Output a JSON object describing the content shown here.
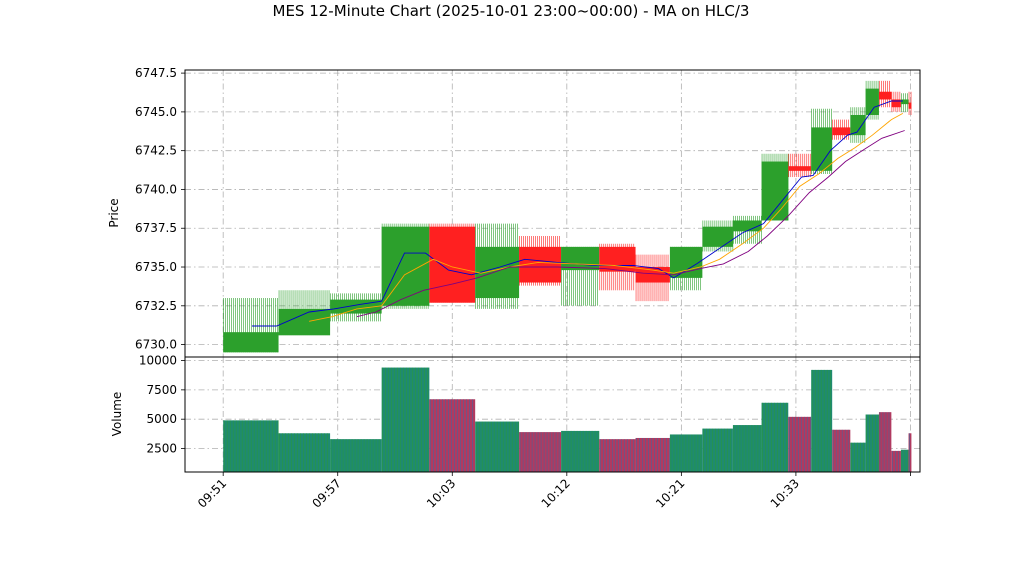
{
  "chart_data": {
    "type": "candlestick",
    "title": "MES 12-Minute Chart (2025-10-01 23:00~00:00) - MA on HLC/3",
    "xlabel": "",
    "ylabel": "Price",
    "volume_label": "Volume",
    "ylim": [
      6729.2,
      6747.7
    ],
    "volume_ylim": [
      500,
      10300
    ],
    "y_ticks": [
      6730.0,
      6732.5,
      6735.0,
      6737.5,
      6740.0,
      6742.5,
      6745.0,
      6747.5
    ],
    "y_tick_labels": [
      "6730.0",
      "6732.5",
      "6735.0",
      "6737.5",
      "6740.0",
      "6742.5",
      "6745.0",
      "6747.5"
    ],
    "volume_ticks": [
      2500,
      5000,
      7500,
      10000
    ],
    "volume_tick_labels": [
      "2500",
      "5000",
      "7500",
      "10000"
    ],
    "x_tick_labels": [
      "09:51",
      "09:57",
      "10:03",
      "10:12",
      "10:21",
      "10:33",
      ""
    ],
    "x_tick_positions": [
      0,
      6,
      12,
      18,
      24,
      30,
      36
    ],
    "x_range": [
      -2,
      36.5
    ],
    "grid": true,
    "colors": {
      "up": "#2ca02c",
      "down": "#ff2020",
      "volume_up": "#1f8a70",
      "volume_down": "#b03a60",
      "ma_fast": "#0000cc",
      "ma_mid": "#ffa500",
      "ma_slow": "#800080"
    },
    "candles": [
      {
        "x": 0,
        "w": 2.9,
        "o": 6729.5,
        "h": 6733.0,
        "l": 6729.5,
        "c": 6730.8,
        "v": 4900
      },
      {
        "x": 2.9,
        "w": 2.7,
        "o": 6730.6,
        "h": 6733.5,
        "l": 6730.6,
        "c": 6732.3,
        "v": 3800
      },
      {
        "x": 5.6,
        "w": 2.7,
        "o": 6732.0,
        "h": 6733.3,
        "l": 6731.5,
        "c": 6732.9,
        "v": 3300
      },
      {
        "x": 8.3,
        "w": 2.5,
        "o": 6732.5,
        "h": 6737.8,
        "l": 6732.3,
        "c": 6737.6,
        "v": 9400
      },
      {
        "x": 10.8,
        "w": 2.4,
        "o": 6737.6,
        "h": 6737.8,
        "l": 6732.7,
        "c": 6732.7,
        "v": 6700
      },
      {
        "x": 13.2,
        "w": 2.3,
        "o": 6733.0,
        "h": 6737.8,
        "l": 6732.3,
        "c": 6736.3,
        "v": 4800
      },
      {
        "x": 15.5,
        "w": 2.2,
        "o": 6736.3,
        "h": 6737.0,
        "l": 6733.8,
        "c": 6734.0,
        "v": 3900
      },
      {
        "x": 17.7,
        "w": 2.0,
        "o": 6734.8,
        "h": 6736.3,
        "l": 6732.5,
        "c": 6736.3,
        "v": 4000
      },
      {
        "x": 19.7,
        "w": 1.9,
        "o": 6736.3,
        "h": 6736.5,
        "l": 6733.5,
        "c": 6734.7,
        "v": 3300
      },
      {
        "x": 21.6,
        "w": 1.8,
        "o": 6735.0,
        "h": 6735.8,
        "l": 6732.8,
        "c": 6734.0,
        "v": 3400
      },
      {
        "x": 23.4,
        "w": 1.7,
        "o": 6734.3,
        "h": 6736.3,
        "l": 6733.5,
        "c": 6736.3,
        "v": 3700
      },
      {
        "x": 25.1,
        "w": 1.6,
        "o": 6736.3,
        "h": 6738.0,
        "l": 6736.0,
        "c": 6737.6,
        "v": 4200
      },
      {
        "x": 26.7,
        "w": 1.5,
        "o": 6737.3,
        "h": 6738.3,
        "l": 6736.5,
        "c": 6738.0,
        "v": 4500
      },
      {
        "x": 28.2,
        "w": 1.4,
        "o": 6738.0,
        "h": 6742.3,
        "l": 6738.0,
        "c": 6741.8,
        "v": 6400
      },
      {
        "x": 29.6,
        "w": 1.2,
        "o": 6741.5,
        "h": 6742.3,
        "l": 6740.8,
        "c": 6741.2,
        "v": 5200
      },
      {
        "x": 30.8,
        "w": 1.1,
        "o": 6741.2,
        "h": 6745.2,
        "l": 6741.0,
        "c": 6744.0,
        "v": 9200
      },
      {
        "x": 31.9,
        "w": 0.95,
        "o": 6744.0,
        "h": 6744.5,
        "l": 6743.2,
        "c": 6743.5,
        "v": 4100
      },
      {
        "x": 32.85,
        "w": 0.8,
        "o": 6743.5,
        "h": 6745.3,
        "l": 6743.0,
        "c": 6744.8,
        "v": 3000
      },
      {
        "x": 33.65,
        "w": 0.7,
        "o": 6744.8,
        "h": 6747.0,
        "l": 6744.5,
        "c": 6746.5,
        "v": 5400
      },
      {
        "x": 34.35,
        "w": 0.65,
        "o": 6746.3,
        "h": 6747.0,
        "l": 6745.3,
        "c": 6745.8,
        "v": 5600
      },
      {
        "x": 35.0,
        "w": 0.5,
        "o": 6745.8,
        "h": 6746.3,
        "l": 6745.0,
        "c": 6745.3,
        "v": 2300
      },
      {
        "x": 35.5,
        "w": 0.4,
        "o": 6745.5,
        "h": 6746.2,
        "l": 6745.0,
        "c": 6745.8,
        "v": 2400
      },
      {
        "x": 35.9,
        "w": 0.15,
        "o": 6745.6,
        "h": 6746.3,
        "l": 6744.8,
        "c": 6745.2,
        "v": 3800
      }
    ],
    "ma_series": [
      {
        "key": "ma_fast",
        "points": [
          [
            1.5,
            6731.2
          ],
          [
            2.8,
            6731.2
          ],
          [
            4.5,
            6732.1
          ],
          [
            5.8,
            6732.3
          ],
          [
            7.2,
            6732.6
          ],
          [
            8.3,
            6732.8
          ],
          [
            9.5,
            6735.9
          ],
          [
            10.6,
            6735.9
          ],
          [
            11.8,
            6734.8
          ],
          [
            13.0,
            6734.5
          ],
          [
            14.5,
            6735.0
          ],
          [
            15.8,
            6735.5
          ],
          [
            17.5,
            6735.3
          ],
          [
            19.5,
            6735.1
          ],
          [
            21.5,
            6735.1
          ],
          [
            22.8,
            6734.9
          ],
          [
            23.6,
            6734.3
          ],
          [
            24.8,
            6735.2
          ],
          [
            26.0,
            6736.2
          ],
          [
            27.2,
            6737.2
          ],
          [
            28.3,
            6737.8
          ],
          [
            29.3,
            6739.3
          ],
          [
            30.3,
            6740.8
          ],
          [
            30.9,
            6740.9
          ],
          [
            31.8,
            6742.5
          ],
          [
            32.7,
            6743.5
          ],
          [
            33.2,
            6743.7
          ],
          [
            34.1,
            6745.3
          ],
          [
            35.0,
            6745.7
          ],
          [
            35.6,
            6745.7
          ]
        ]
      },
      {
        "key": "ma_mid",
        "points": [
          [
            4.5,
            6731.5
          ],
          [
            5.7,
            6731.8
          ],
          [
            7.0,
            6732.3
          ],
          [
            8.3,
            6732.5
          ],
          [
            9.5,
            6734.5
          ],
          [
            11.0,
            6735.5
          ],
          [
            12.0,
            6735.0
          ],
          [
            13.5,
            6734.6
          ],
          [
            15.0,
            6735.0
          ],
          [
            16.5,
            6735.3
          ],
          [
            18.5,
            6735.2
          ],
          [
            20.5,
            6735.1
          ],
          [
            22.5,
            6734.8
          ],
          [
            23.6,
            6734.6
          ],
          [
            25.0,
            6735.0
          ],
          [
            26.0,
            6735.5
          ],
          [
            27.2,
            6736.5
          ],
          [
            28.3,
            6737.5
          ],
          [
            29.2,
            6738.7
          ],
          [
            30.2,
            6740.2
          ],
          [
            31.2,
            6741.0
          ],
          [
            32.2,
            6742.0
          ],
          [
            33.1,
            6742.7
          ],
          [
            34.0,
            6743.5
          ],
          [
            35.0,
            6744.5
          ],
          [
            35.6,
            6744.9
          ]
        ]
      },
      {
        "key": "ma_slow",
        "points": [
          [
            7.0,
            6731.8
          ],
          [
            8.0,
            6732.1
          ],
          [
            9.3,
            6732.9
          ],
          [
            10.5,
            6733.5
          ],
          [
            12.0,
            6733.9
          ],
          [
            13.3,
            6734.3
          ],
          [
            15.0,
            6735.0
          ],
          [
            17.5,
            6735.0
          ],
          [
            20.0,
            6734.9
          ],
          [
            22.0,
            6734.6
          ],
          [
            23.6,
            6734.5
          ],
          [
            25.0,
            6734.9
          ],
          [
            26.2,
            6735.2
          ],
          [
            27.5,
            6736.0
          ],
          [
            28.5,
            6737.0
          ],
          [
            29.6,
            6738.3
          ],
          [
            30.7,
            6739.8
          ],
          [
            31.7,
            6740.8
          ],
          [
            32.6,
            6741.8
          ],
          [
            33.6,
            6742.6
          ],
          [
            34.5,
            6743.3
          ],
          [
            35.7,
            6743.8
          ]
        ]
      }
    ]
  }
}
